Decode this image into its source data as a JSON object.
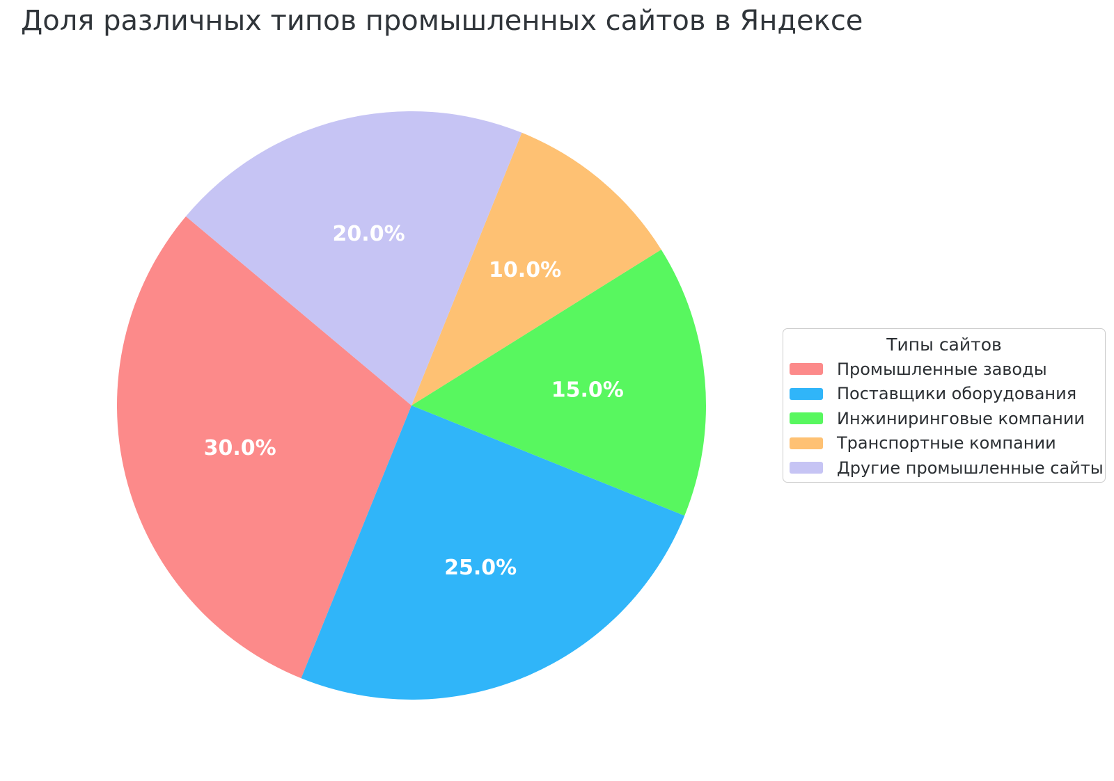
{
  "title": "Доля различных типов промышленных сайтов в Яндексе",
  "chart_data": {
    "type": "pie",
    "title": "Доля различных типов промышленных сайтов в Яндексе",
    "legend_title": "Типы сайтов",
    "legend_position": "right",
    "start_angle": 140,
    "direction": "counterclockwise",
    "labels": [
      "Промышленные заводы",
      "Поставщики оборудования",
      "Инжиниринговые компании",
      "Транспортные компании",
      "Другие промышленные сайты"
    ],
    "values": [
      30,
      25,
      15,
      10,
      20
    ],
    "percent_labels": [
      "30.0%",
      "25.0%",
      "15.0%",
      "10.0%",
      "20.0%"
    ],
    "colors": [
      "#fc8a8a",
      "#30b5f9",
      "#58f75f",
      "#fec173",
      "#c6c4f4"
    ],
    "styles": {
      "background": "#ffffff",
      "title_color": "#30353a",
      "legend_text_color": "#2b2f33",
      "legend_border_color": "#cccccc",
      "percent_label_color": "#ffffff"
    }
  }
}
